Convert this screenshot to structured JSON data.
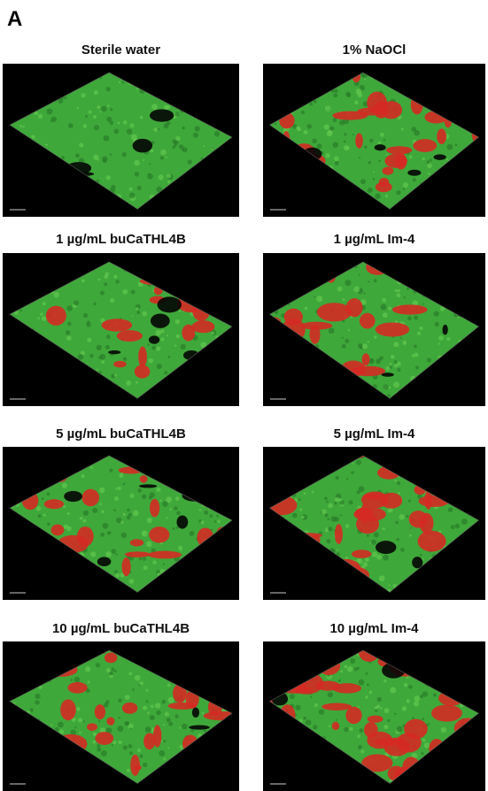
{
  "panel_label": "A",
  "panels": [
    {
      "title": "Sterile water"
    },
    {
      "title": "1% NaOCl"
    },
    {
      "title": "1 µg/mL buCaTHL4B"
    },
    {
      "title": "1 µg/mL Im-4"
    },
    {
      "title": "5 µg/mL buCaTHL4B"
    },
    {
      "title": "5 µg/mL Im-4"
    },
    {
      "title": "10 µg/mL buCaTHL4B"
    },
    {
      "title": "10 µg/mL Im-4"
    }
  ]
}
